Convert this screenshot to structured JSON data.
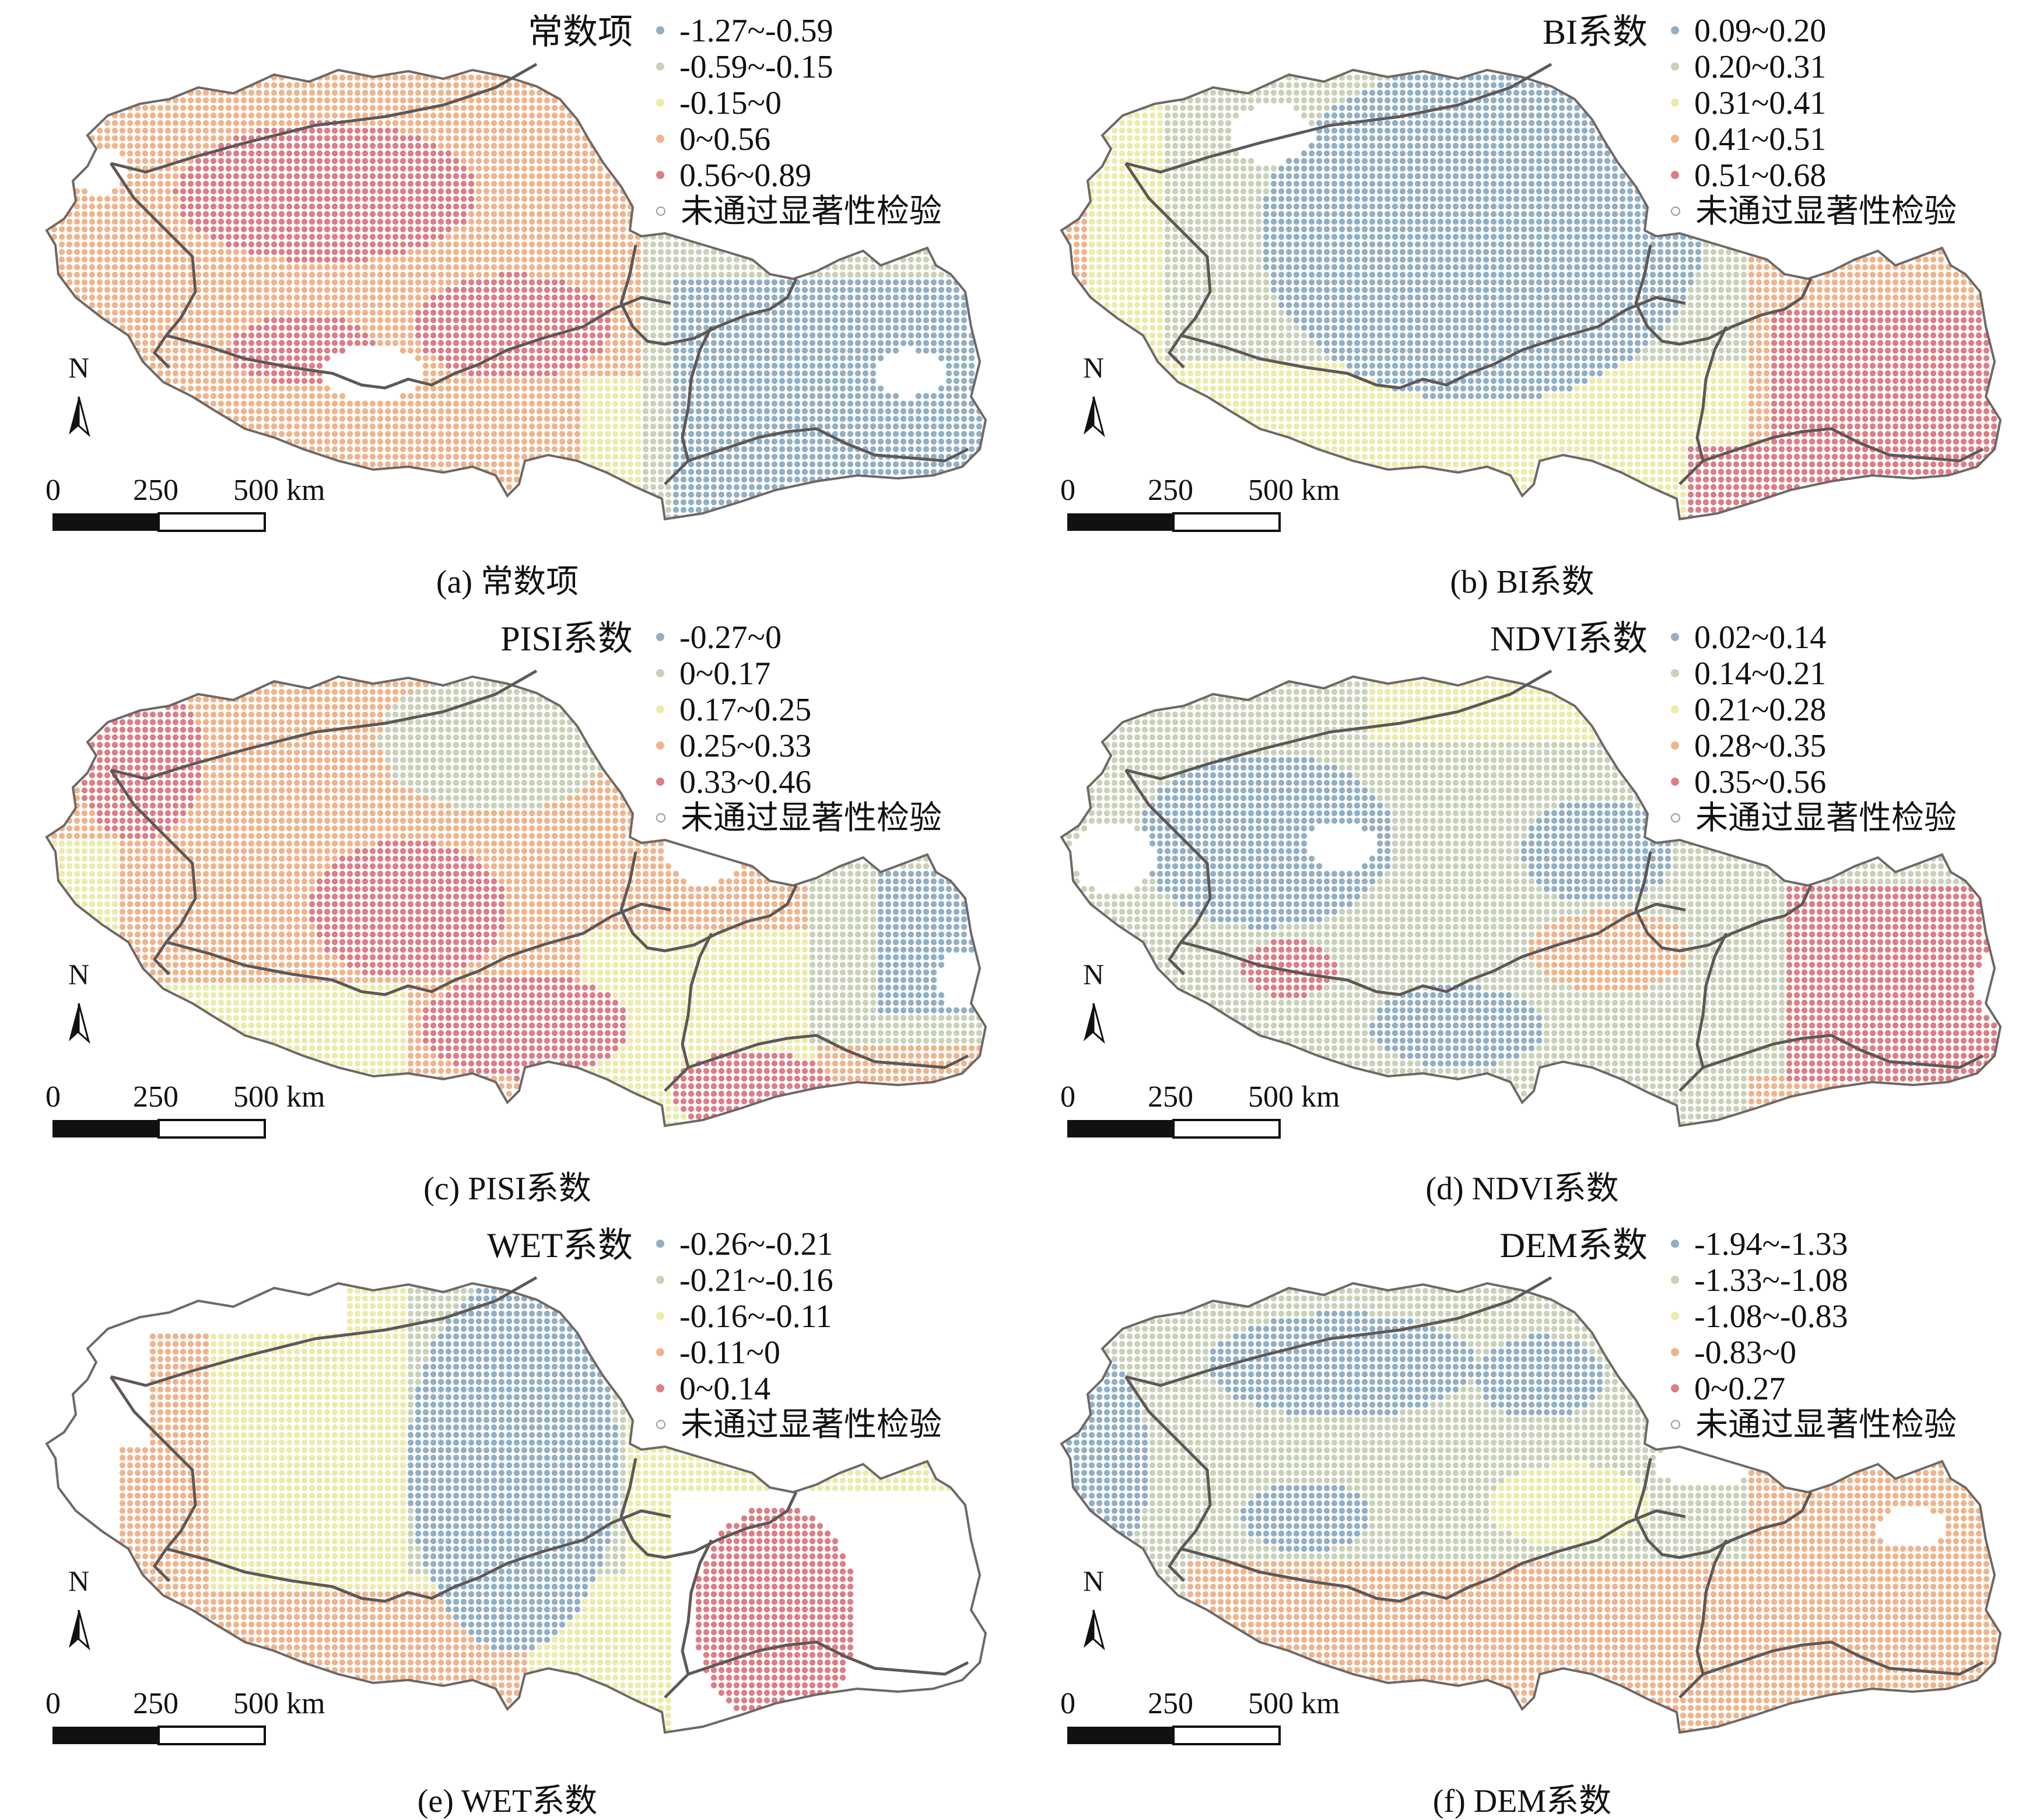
{
  "figure": {
    "panels": [
      {
        "id": "a",
        "legend_title": "常数项",
        "caption": "(a) 常数项",
        "legend": [
          {
            "label": "-1.27~-0.59",
            "color": "#92afc4"
          },
          {
            "label": "-0.59~-0.15",
            "color": "#c9d2b8"
          },
          {
            "label": "-0.15~0",
            "color": "#ecebab"
          },
          {
            "label": "0~0.56",
            "color": "#eeb58d"
          },
          {
            "label": "0.56~0.89",
            "color": "#db7f86"
          },
          {
            "label": "未通过显著性检验",
            "color": "#ffffff"
          }
        ],
        "coloring": "const"
      },
      {
        "id": "b",
        "legend_title": "BI系数",
        "caption": "(b) BI系数",
        "legend": [
          {
            "label": "0.09~0.20",
            "color": "#92afc4"
          },
          {
            "label": "0.20~0.31",
            "color": "#c9d2b8"
          },
          {
            "label": "0.31~0.41",
            "color": "#ecebab"
          },
          {
            "label": "0.41~0.51",
            "color": "#eeb58d"
          },
          {
            "label": "0.51~0.68",
            "color": "#db7f86"
          },
          {
            "label": "未通过显著性检验",
            "color": "#ffffff"
          }
        ],
        "coloring": "bi"
      },
      {
        "id": "c",
        "legend_title": "PISI系数",
        "caption": "(c) PISI系数",
        "legend": [
          {
            "label": "-0.27~0",
            "color": "#92afc4"
          },
          {
            "label": "0~0.17",
            "color": "#c9d2b8"
          },
          {
            "label": "0.17~0.25",
            "color": "#ecebab"
          },
          {
            "label": "0.25~0.33",
            "color": "#eeb58d"
          },
          {
            "label": "0.33~0.46",
            "color": "#db7f86"
          },
          {
            "label": "未通过显著性检验",
            "color": "#ffffff"
          }
        ],
        "coloring": "pisi"
      },
      {
        "id": "d",
        "legend_title": "NDVI系数",
        "caption": "(d) NDVI系数",
        "legend": [
          {
            "label": "0.02~0.14",
            "color": "#92afc4"
          },
          {
            "label": "0.14~0.21",
            "color": "#c9d2b8"
          },
          {
            "label": "0.21~0.28",
            "color": "#ecebab"
          },
          {
            "label": "0.28~0.35",
            "color": "#eeb58d"
          },
          {
            "label": "0.35~0.56",
            "color": "#db7f86"
          },
          {
            "label": "未通过显著性检验",
            "color": "#ffffff"
          }
        ],
        "coloring": "ndvi"
      },
      {
        "id": "e",
        "legend_title": "WET系数",
        "caption": "(e) WET系数",
        "legend": [
          {
            "label": "-0.26~-0.21",
            "color": "#92afc4"
          },
          {
            "label": "-0.21~-0.16",
            "color": "#c9d2b8"
          },
          {
            "label": "-0.16~-0.11",
            "color": "#ecebab"
          },
          {
            "label": "-0.11~0",
            "color": "#eeb58d"
          },
          {
            "label": "0~0.14",
            "color": "#db7f86"
          },
          {
            "label": "未通过显著性检验",
            "color": "#ffffff"
          }
        ],
        "coloring": "wet"
      },
      {
        "id": "f",
        "legend_title": "DEM系数",
        "caption": "(f) DEM系数",
        "legend": [
          {
            "label": "-1.94~-1.33",
            "color": "#92afc4"
          },
          {
            "label": "-1.33~-1.08",
            "color": "#c9d2b8"
          },
          {
            "label": "-1.08~-0.83",
            "color": "#ecebab"
          },
          {
            "label": "-0.83~0",
            "color": "#eeb58d"
          },
          {
            "label": "0~0.27",
            "color": "#db7f86"
          },
          {
            "label": "未通过显著性检验",
            "color": "#ffffff"
          }
        ],
        "coloring": "dem"
      }
    ],
    "north_label": "N",
    "scale": {
      "ticks": [
        "0",
        "250",
        "500 km"
      ]
    },
    "colors": {
      "outline": "#6e6866",
      "boundary": "#5e5856"
    }
  }
}
